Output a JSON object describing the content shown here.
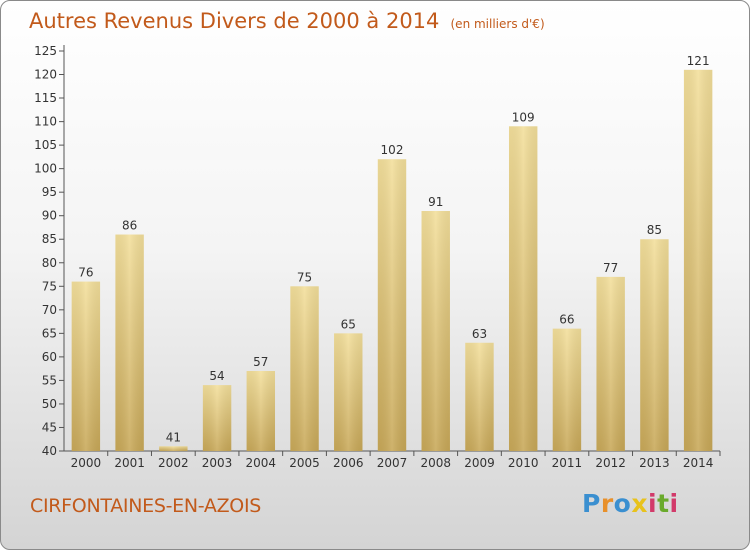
{
  "title": "Autres Revenus Divers de 2000 à 2014",
  "unit": "(en milliers d'€)",
  "commune": "CIRFONTAINES-EN-AZOIS",
  "brand": {
    "letters": [
      "P",
      "r",
      "o",
      "x",
      "i",
      "t",
      "i"
    ],
    "colors": [
      "#3a8fd0",
      "#e8902a",
      "#3a8fd0",
      "#e8c21c",
      "#d23a6a",
      "#6aaa2c",
      "#d23a6a"
    ]
  },
  "colors": {
    "bar_light": "#f3df9b",
    "bar_dark": "#c8a858",
    "axis": "#555555",
    "text": "#333333",
    "title": "#c25a1b"
  },
  "chart_data": {
    "type": "bar",
    "categories": [
      "2000",
      "2001",
      "2002",
      "2003",
      "2004",
      "2005",
      "2006",
      "2007",
      "2008",
      "2009",
      "2010",
      "2011",
      "2012",
      "2013",
      "2014"
    ],
    "values": [
      76,
      86,
      41,
      54,
      57,
      75,
      65,
      102,
      91,
      63,
      109,
      66,
      77,
      85,
      121
    ],
    "ylim": [
      40,
      125
    ],
    "yticks": [
      40,
      45,
      50,
      55,
      60,
      65,
      70,
      75,
      80,
      85,
      90,
      95,
      100,
      105,
      110,
      115,
      120,
      125
    ],
    "grid": false,
    "legend": "none"
  }
}
